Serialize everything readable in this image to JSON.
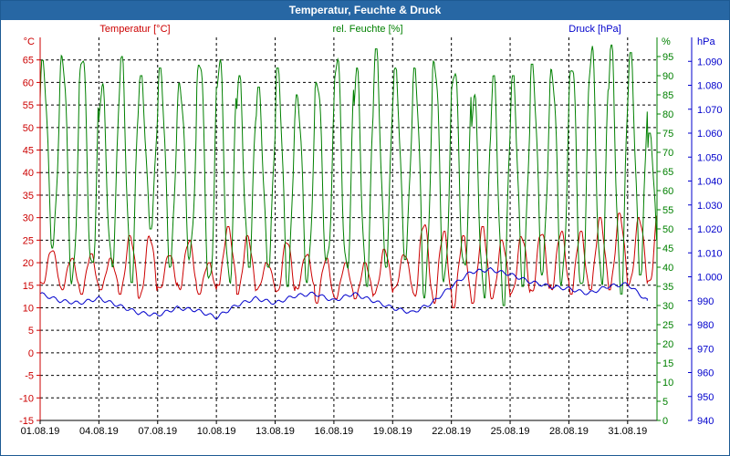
{
  "window": {
    "title": "Temperatur, Feuchte & Druck"
  },
  "colors": {
    "temperature": "#cc0000",
    "humidity": "#008000",
    "pressure": "#0000cc",
    "grid": "#000000",
    "titlebar": "#2767a4"
  },
  "chart_data": {
    "type": "line",
    "title": "Temperatur, Feuchte & Druck",
    "grid": true,
    "legend_position": "top",
    "x_tick_labels": [
      "01.08.19",
      "04.08.19",
      "07.08.19",
      "10.08.19",
      "13.08.19",
      "16.08.19",
      "19.08.19",
      "22.08.19",
      "25.08.19",
      "28.08.19",
      "31.08.19"
    ],
    "x_range_days": [
      0,
      31.5
    ],
    "axes": {
      "temperature": {
        "unit_label": "°C",
        "series_label": "Temperatur [°C]",
        "ylim": [
          -15,
          70
        ],
        "ticks": [
          -15,
          -10,
          -5,
          0,
          5,
          10,
          15,
          20,
          25,
          30,
          35,
          40,
          45,
          50,
          55,
          60,
          65
        ]
      },
      "humidity": {
        "unit_label": "%",
        "series_label": "rel. Feuchte [%]",
        "ylim": [
          0,
          100
        ],
        "ticks": [
          0,
          5,
          10,
          15,
          20,
          25,
          30,
          35,
          40,
          45,
          50,
          55,
          60,
          65,
          70,
          75,
          80,
          85,
          90,
          95
        ]
      },
      "pressure": {
        "unit_label": "hPa",
        "series_label": "Druck [hPa]",
        "ylim": [
          940,
          1100
        ],
        "ticks": [
          "940",
          "950",
          "960",
          "970",
          "980",
          "990",
          "1.000",
          "1.010",
          "1.020",
          "1.030",
          "1.040",
          "1.050",
          "1.060",
          "1.070",
          "1.080",
          "1.090"
        ]
      }
    },
    "series": [
      {
        "name": "Temperatur [°C]",
        "axis": "temperature",
        "daily_min": [
          15,
          14,
          13,
          14,
          13,
          12,
          14,
          14,
          13,
          15,
          13,
          14,
          13,
          14,
          11,
          12,
          12,
          13,
          14,
          12,
          11,
          10,
          11,
          12,
          13,
          13,
          14,
          13,
          14,
          14,
          15,
          15
        ],
        "daily_max": [
          23,
          21,
          22,
          21,
          26,
          26,
          22,
          25,
          20,
          28,
          26,
          20,
          25,
          22,
          21,
          20,
          20,
          23,
          22,
          29,
          27,
          26,
          28,
          25,
          26,
          27,
          27,
          27,
          30,
          31,
          30,
          32
        ]
      },
      {
        "name": "rel. Feuchte [%]",
        "axis": "humidity",
        "daily_min": [
          45,
          35,
          38,
          40,
          36,
          50,
          40,
          42,
          34,
          35,
          40,
          40,
          35,
          36,
          40,
          38,
          35,
          40,
          42,
          32,
          35,
          38,
          32,
          30,
          35,
          38,
          35,
          32,
          35,
          33,
          38,
          35
        ],
        "daily_max": [
          94,
          96,
          97,
          88,
          95,
          90,
          92,
          88,
          96,
          95,
          90,
          87,
          92,
          85,
          90,
          96,
          92,
          97,
          92,
          92,
          95,
          93,
          85,
          90,
          90,
          93,
          92,
          95,
          98,
          98,
          96,
          75
        ]
      },
      {
        "name": "Druck [hPa]",
        "axis": "pressure",
        "points": [
          [
            0,
            993
          ],
          [
            1,
            990
          ],
          [
            2,
            989
          ],
          [
            3,
            991
          ],
          [
            4,
            988
          ],
          [
            5,
            985
          ],
          [
            6,
            984
          ],
          [
            7,
            987
          ],
          [
            8,
            986
          ],
          [
            9,
            983
          ],
          [
            10,
            988
          ],
          [
            11,
            991
          ],
          [
            12,
            989
          ],
          [
            13,
            992
          ],
          [
            14,
            993
          ],
          [
            15,
            990
          ],
          [
            16,
            993
          ],
          [
            17,
            990
          ],
          [
            18,
            987
          ],
          [
            19,
            985
          ],
          [
            20,
            989
          ],
          [
            21,
            996
          ],
          [
            22,
            1002
          ],
          [
            23,
            1003
          ],
          [
            24,
            1001
          ],
          [
            25,
            998
          ],
          [
            26,
            996
          ],
          [
            27,
            995
          ],
          [
            28,
            993
          ],
          [
            29,
            996
          ],
          [
            30,
            997
          ],
          [
            31,
            990
          ]
        ]
      }
    ]
  }
}
